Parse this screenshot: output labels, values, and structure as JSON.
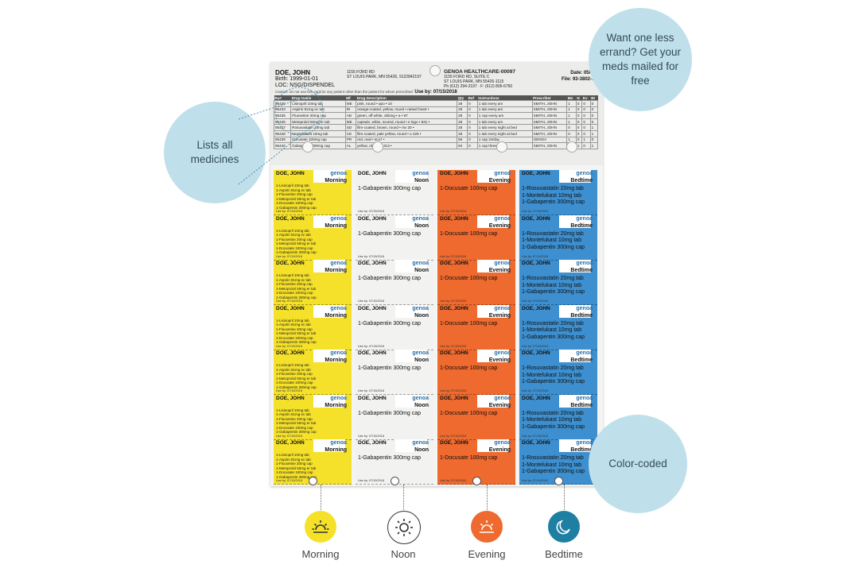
{
  "sheet": {
    "patient_name": "DOE, JOHN",
    "birth": "Birth: 1999-01-01",
    "loc": "LOC: NSG/DISPENDEL",
    "patient_address": [
      "1155 FORD RD",
      "ST LOUIS PARK, MN 55426, 9122842197"
    ],
    "pharmacy_name": "GENOA HEALTHCARE-00097",
    "pharmacy_address": [
      "1155 FORD RD, SUITE C",
      "ST LOUIS PARK, MN 55426-1115",
      "Ph (612) 294-2197 · F: (612) 805-6750"
    ],
    "date": "Date: 05/16/2",
    "file": "File: 93-3802-180",
    "note": "Caution: do not use this card for any patient other than the patient for whom prescribed",
    "use_by": "Use by: 07/15/2018",
    "table_headers": [
      "Rx#",
      "Drug Name",
      "Mf",
      "Drug Description",
      "Qty",
      "Ref",
      "Instructions",
      "Prescriber",
      "Mo",
      "N",
      "Ev",
      "Bt"
    ],
    "rows": [
      [
        "95430",
        "Lisinopril 10mg tab",
        "ME",
        "pink, round • apo • 10",
        "28",
        "0",
        "1 tab every am",
        "SMITH, JOHN",
        "1",
        "0",
        "0",
        "0"
      ],
      [
        "95433",
        "Aspirin 81mg ec tab",
        "RI",
        "orange-coated, yellow, round • raised heart •",
        "28",
        "0",
        "1 tab every am",
        "SMITH, JOHN",
        "1",
        "0",
        "0",
        "0"
      ],
      [
        "95435",
        "Fluoxetine 20mg cap",
        "AB",
        "green, off white, oblong • a • 97",
        "28",
        "0",
        "1 cap every am",
        "SMITH, JOHN",
        "1",
        "0",
        "0",
        "0"
      ],
      [
        "95436",
        "Metoprolol 50mg er tab",
        "ME",
        "capsule, white, scored, round • e logo • 831 •",
        "28",
        "0",
        "1 tab every am",
        "SMITH, JOHN",
        "1",
        "0",
        "0",
        "0"
      ],
      [
        "95437",
        "Rosuvastatin 20mg tab",
        "SD",
        "film-coated, brown, round • rsv 20 •",
        "28",
        "0",
        "1 tab every night at bed",
        "SMITH, JOHN",
        "0",
        "0",
        "0",
        "1"
      ],
      [
        "95438",
        "Montelukast 10mg tab",
        "CE",
        "film-coated, pale yellow, round • u 225 •",
        "28",
        "0",
        "1 tab every night at bed",
        "SMITH, JOHN",
        "0",
        "0",
        "0",
        "1"
      ],
      [
        "95439",
        "Docusate 100mg cap",
        "PR",
        "red, oval • scu7 •",
        "56",
        "0",
        "1 cap 2x/day",
        "GENOA",
        "1",
        "0",
        "1",
        "0"
      ],
      [
        "95440",
        "Gabapentin 300mg cap",
        "AL",
        "yellow, oblong • 313 •",
        "84",
        "0",
        "1 cap three x/day",
        "SMITH, JOHN",
        "1",
        "1",
        "0",
        "1"
      ]
    ]
  },
  "columns": [
    {
      "key": "morning",
      "label": "Morning",
      "color": "#f5e12a",
      "text_style": "list",
      "meds": [
        "1-Lisinopril 10mg tab",
        "1-Aspirin 81mg ec tab",
        "1-Fluoxetine 20mg cap",
        "1-Metoprolol 50mg er tab",
        "1-Docusate 100mg cap",
        "1-Gabapentin 300mg cap"
      ]
    },
    {
      "key": "noon",
      "label": "Noon",
      "color": "#f2f2f0",
      "text_style": "big",
      "meds": [
        "1-Gabapentin 300mg cap"
      ]
    },
    {
      "key": "evening",
      "label": "Evening",
      "color": "#ee6a2e",
      "text_style": "big",
      "meds": [
        "1-Docusate 100mg cap"
      ]
    },
    {
      "key": "bedtime",
      "label": "Bedtime",
      "color": "#3d8fcf",
      "text_style": "big",
      "meds": [
        "1-Rosuvastatin 20mg tab",
        "1-Montelukast 10mg tab",
        "1-Gabapentin 300mg cap"
      ]
    }
  ],
  "brand": "genoa",
  "callouts": {
    "mail": "Want one less errand? Get your meds mailed for free",
    "list": "Lists all medicines",
    "color": "Color-coded"
  },
  "legend": [
    {
      "label": "Morning",
      "icon": "sunrise-icon",
      "bg": "#f5e12a",
      "stroke": "#333333"
    },
    {
      "label": "Noon",
      "icon": "sun-icon",
      "bg": "#ffffff",
      "stroke": "#333333"
    },
    {
      "label": "Evening",
      "icon": "sunset-icon",
      "bg": "#ee6a2e",
      "stroke": "#ffffff"
    },
    {
      "label": "Bedtime",
      "icon": "moon-icon",
      "bg": "#1f7fa3",
      "stroke": "#ffffff"
    }
  ]
}
